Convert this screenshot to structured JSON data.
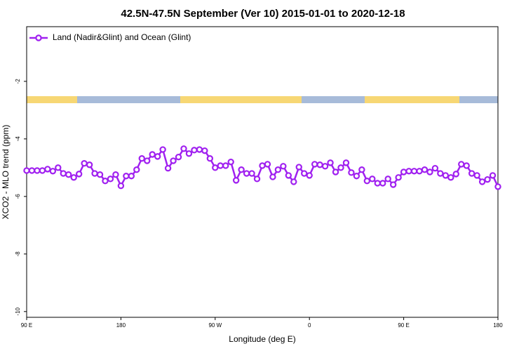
{
  "chart_data": {
    "type": "line",
    "title": "42.5N-47.5N September (Ver 10)   2015-01-01 to 2020-12-18",
    "x_label": "Longitude (deg E)",
    "y_label": "XCO2 - MLO trend (ppm)",
    "xlim": [
      90,
      540
    ],
    "ylim": [
      -10.2,
      -0.1
    ],
    "xticks": [
      {
        "value": 90,
        "label": "90 E"
      },
      {
        "value": 180,
        "label": "180"
      },
      {
        "value": 270,
        "label": "90 W"
      },
      {
        "value": 360,
        "label": "0"
      },
      {
        "value": 450,
        "label": "90 E"
      },
      {
        "value": 540,
        "label": "180"
      }
    ],
    "yticks": [
      -2,
      -4,
      -6,
      -8,
      -10
    ],
    "legend": "top-left",
    "x": [
      90,
      95,
      100,
      105,
      110,
      115,
      120,
      125,
      130,
      135,
      140,
      145,
      150,
      155,
      160,
      165,
      170,
      175,
      180,
      185,
      190,
      195,
      200,
      205,
      210,
      215,
      220,
      225,
      230,
      235,
      240,
      245,
      250,
      255,
      260,
      265,
      270,
      275,
      280,
      285,
      290,
      295,
      300,
      305,
      310,
      315,
      320,
      325,
      330,
      335,
      340,
      345,
      350,
      355,
      360,
      365,
      370,
      375,
      380,
      385,
      390,
      395,
      400,
      405,
      410,
      415,
      420,
      425,
      430,
      435,
      440,
      445,
      450,
      455,
      460,
      465,
      470,
      475,
      480,
      485,
      490,
      495,
      500,
      505,
      510,
      515,
      520,
      525,
      530,
      535,
      540
    ],
    "series": [
      {
        "name": "Land (Nadir&Glint) and Ocean (Glint)",
        "color": "#a020f0",
        "values": [
          -5.1,
          -5.1,
          -5.1,
          -5.1,
          -5.05,
          -5.12,
          -5.0,
          -5.2,
          -5.24,
          -5.34,
          -5.22,
          -4.85,
          -4.9,
          -5.2,
          -5.24,
          -5.46,
          -5.39,
          -5.24,
          -5.63,
          -5.29,
          -5.29,
          -5.07,
          -4.68,
          -4.76,
          -4.54,
          -4.61,
          -4.37,
          -5.02,
          -4.76,
          -4.63,
          -4.34,
          -4.51,
          -4.39,
          -4.37,
          -4.41,
          -4.68,
          -5.0,
          -4.93,
          -4.93,
          -4.8,
          -5.44,
          -5.07,
          -5.2,
          -5.2,
          -5.39,
          -4.93,
          -4.88,
          -5.32,
          -5.07,
          -4.95,
          -5.27,
          -5.49,
          -4.98,
          -5.2,
          -5.27,
          -4.88,
          -4.9,
          -4.95,
          -4.83,
          -5.15,
          -5.0,
          -4.83,
          -5.17,
          -5.29,
          -5.07,
          -5.46,
          -5.39,
          -5.54,
          -5.54,
          -5.39,
          -5.59,
          -5.34,
          -5.15,
          -5.12,
          -5.12,
          -5.12,
          -5.07,
          -5.15,
          -5.02,
          -5.2,
          -5.27,
          -5.34,
          -5.22,
          -4.88,
          -4.93,
          -5.2,
          -5.27,
          -5.49,
          -5.41,
          -5.27,
          -5.66
        ]
      }
    ]
  }
}
